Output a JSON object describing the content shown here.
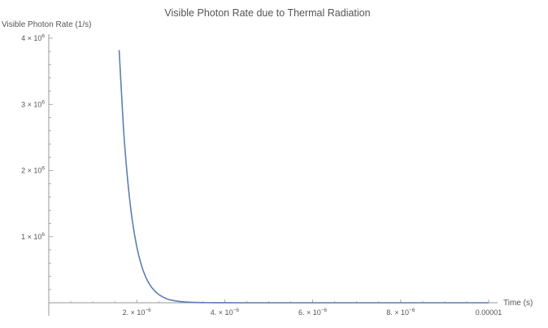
{
  "chart_data": {
    "type": "line",
    "title": "Visible Photon Rate due to Thermal Radiation",
    "xlabel": "Time (s)",
    "ylabel": "Visible Photon Rate (1/s)",
    "xlim": [
      0,
      1e-05
    ],
    "ylim": [
      0,
      4000000
    ],
    "grid": false,
    "legend": "none",
    "series_color": "#5b7fb3",
    "x_ticks": [
      {
        "value": 2e-06,
        "mantissa": "2. × 10",
        "exp": "−6"
      },
      {
        "value": 4e-06,
        "mantissa": "4. × 10",
        "exp": "−6"
      },
      {
        "value": 6e-06,
        "mantissa": "6. × 10",
        "exp": "−6"
      },
      {
        "value": 8e-06,
        "mantissa": "8. × 10",
        "exp": "−6"
      },
      {
        "value": 1e-05,
        "mantissa": "0.00001",
        "exp": ""
      }
    ],
    "y_ticks": [
      {
        "value": 1000000,
        "mantissa": "1 × 10",
        "exp": "6"
      },
      {
        "value": 2000000,
        "mantissa": "2 × 10",
        "exp": "6"
      },
      {
        "value": 3000000,
        "mantissa": "3 × 10",
        "exp": "6"
      },
      {
        "value": 4000000,
        "mantissa": "4 × 10",
        "exp": "6"
      }
    ],
    "series": [
      {
        "x": [
          1.6e-06,
          1.7e-06,
          1.8e-06,
          1.9e-06,
          2e-06,
          2.1e-06,
          2.2e-06,
          2.3e-06,
          2.4e-06,
          2.5e-06,
          2.6e-06,
          2.7e-06,
          2.8e-06,
          3e-06,
          3.2e-06,
          3.5e-06,
          4e-06,
          5e-06,
          6e-06,
          7e-06,
          8e-06,
          9e-06,
          1e-05
        ],
        "y": [
          3820000,
          2620000,
          1810000,
          1240000,
          850000,
          580000,
          395000,
          270000,
          185000,
          125000,
          85000,
          56000,
          38000,
          18000,
          8000,
          2500,
          300,
          0,
          0,
          0,
          0,
          0,
          0
        ]
      }
    ]
  }
}
